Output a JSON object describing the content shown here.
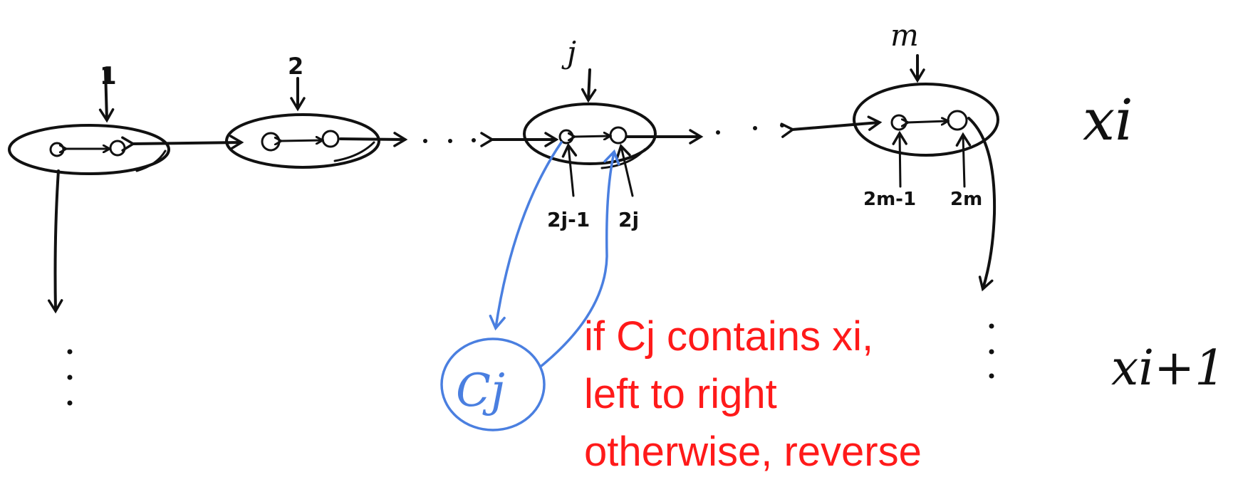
{
  "labels": {
    "var_1": "1",
    "var_2": "2",
    "var_j": "j",
    "var_m": "m",
    "lit_2j_minus_1": "2j-1",
    "lit_2j": "2j",
    "lit_2m_minus_1": "2m-1",
    "lit_2m": "2m",
    "row_xi": "xi",
    "row_xi_plus_1": "xi+1",
    "clause": "Cj"
  },
  "note": {
    "line1": "if Cj contains xi,",
    "line2": "left to right",
    "line3": "otherwise, reverse"
  },
  "colors": {
    "ink": "#111111",
    "clause_blue": "#4a7fe0",
    "note_red": "#ff1a1a"
  }
}
